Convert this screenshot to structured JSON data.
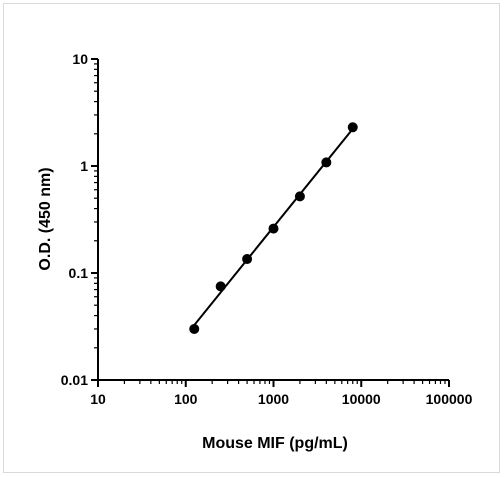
{
  "chart_data": {
    "type": "scatter",
    "title": "",
    "xlabel": "Mouse MIF (pg/mL)",
    "ylabel": "O.D. (450 nm)",
    "x_scale": "log",
    "y_scale": "log",
    "xlim": [
      10,
      100000
    ],
    "ylim": [
      0.01,
      10
    ],
    "x_ticks": [
      10,
      100,
      1000,
      10000,
      100000
    ],
    "x_tick_labels": [
      "10",
      "100",
      "1000",
      "10000",
      "100000"
    ],
    "y_ticks": [
      0.01,
      0.1,
      1,
      10
    ],
    "y_tick_labels": [
      "0.01",
      "0.1",
      "1",
      "10"
    ],
    "grid": false,
    "legend": "none",
    "series": [
      {
        "x": [
          125,
          250,
          500,
          1000,
          2000,
          4000,
          8000
        ],
        "y": [
          0.03,
          0.075,
          0.135,
          0.26,
          0.52,
          1.08,
          2.3
        ],
        "fit_line": true,
        "color": "#000000"
      }
    ]
  }
}
